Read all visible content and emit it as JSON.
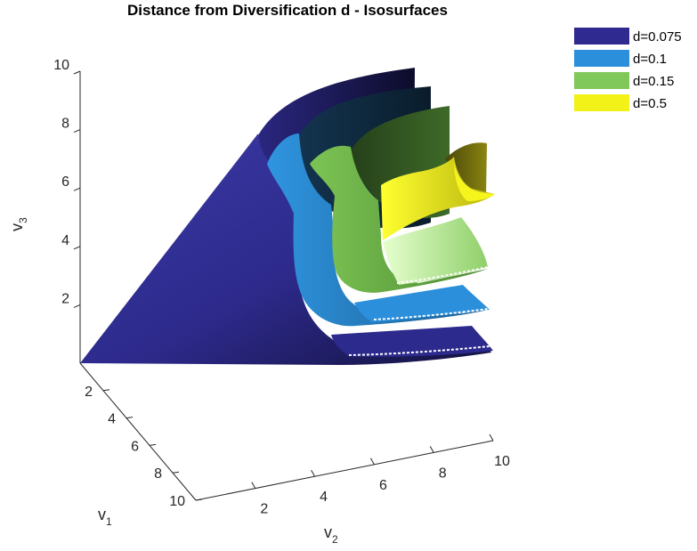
{
  "chart_data": {
    "type": "isosurface-3d",
    "title": "Distance from Diversification d - Isosurfaces",
    "xlabel": {
      "base": "v",
      "sub": "1"
    },
    "ylabel": {
      "base": "v",
      "sub": "2"
    },
    "zlabel": {
      "base": "v",
      "sub": "3"
    },
    "x_ticks": [
      "2",
      "4",
      "6",
      "8",
      "10"
    ],
    "y_ticks": [
      "2",
      "4",
      "6",
      "8",
      "10"
    ],
    "z_ticks": [
      "2",
      "4",
      "6",
      "8",
      "10"
    ],
    "xlim": [
      0,
      10
    ],
    "ylim": [
      0,
      10
    ],
    "zlim": [
      0,
      10
    ],
    "grid": false,
    "legend_position": "top-right",
    "series": [
      {
        "name": "d=0.075",
        "value": 0.075,
        "color": "#2e2a8f"
      },
      {
        "name": "d=0.1",
        "value": 0.1,
        "color": "#2b8fdb"
      },
      {
        "name": "d=0.15",
        "value": 0.15,
        "color": "#80c85a"
      },
      {
        "name": "d=0.5",
        "value": 0.5,
        "color": "#f2f218"
      }
    ]
  }
}
